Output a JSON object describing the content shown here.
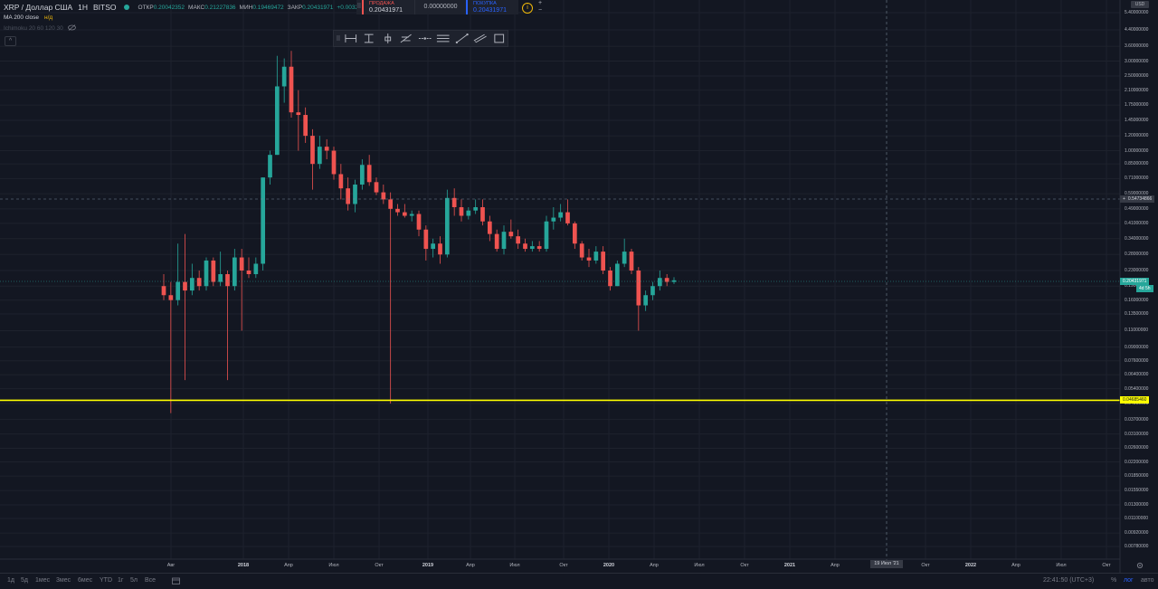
{
  "header": {
    "symbol": "XRP / Доллар США",
    "interval": "1H",
    "exchange": "BITSO",
    "open_label": "ОТКР",
    "open_value": "0.20042352",
    "high_label": "МАКС",
    "high_value": "0.21227836",
    "low_label": "МИН",
    "low_value": "0.19469472",
    "close_label": "ЗАКР",
    "close_value": "0.20431971",
    "change_value": "+0.0032"
  },
  "indicators": [
    {
      "name": "MA 200 close",
      "value": "н/д"
    },
    {
      "name": "Ichimoku 20 60 120 30",
      "value": ""
    }
  ],
  "trade": {
    "sell_label": "ПРОДАЖА",
    "sell_price": "0.20431971",
    "spread": "0.00000000",
    "buy_label": "ПОКУПКА",
    "buy_price": "0.20431971",
    "plus": "+",
    "minus": "−"
  },
  "drawing_tools": [
    "date-price-range-icon",
    "price-range-icon",
    "long-position-icon",
    "fib-retracement-icon",
    "horizontal-ray-icon",
    "parallel-channel-icon",
    "trend-line-icon",
    "pitchfork-icon",
    "rectangle-icon"
  ],
  "price_axis": {
    "currency": "USD",
    "ticks": [
      "5.40000000",
      "4.40000000",
      "3.60000000",
      "3.00000000",
      "2.50000000",
      "2.10000000",
      "1.75000000",
      "1.45000000",
      "1.20000000",
      "1.00000000",
      "0.85000000",
      "0.71000000",
      "0.59000000",
      "0.49000000",
      "0.41000000",
      "0.34000000",
      "0.28000000",
      "0.23000000",
      "0.19000000",
      "0.16000000",
      "0.13500000",
      "0.11000000",
      "0.09000000",
      "0.07600000",
      "0.06400000",
      "0.05400000",
      "0.04500000",
      "0.03700000",
      "0.03100000",
      "0.02600000",
      "0.02200000",
      "0.01850000",
      "0.01550000",
      "0.01300000",
      "0.01100000",
      "0.00920000",
      "0.00780000"
    ],
    "crosshair_price": "0.54734866",
    "current_price": "0.20431971",
    "countdown": "4d 5h",
    "hline_price": "0.04685460"
  },
  "time_axis": {
    "ticks": [
      {
        "label": "Авг",
        "bold": false
      },
      {
        "label": "2018",
        "bold": true
      },
      {
        "label": "Апр",
        "bold": false
      },
      {
        "label": "Июл",
        "bold": false
      },
      {
        "label": "Окт",
        "bold": false
      },
      {
        "label": "2019",
        "bold": true
      },
      {
        "label": "Апр",
        "bold": false
      },
      {
        "label": "Июл",
        "bold": false
      },
      {
        "label": "Окт",
        "bold": false
      },
      {
        "label": "2020",
        "bold": true
      },
      {
        "label": "Апр",
        "bold": false
      },
      {
        "label": "Июл",
        "bold": false
      },
      {
        "label": "Окт",
        "bold": false
      },
      {
        "label": "2021",
        "bold": true
      },
      {
        "label": "Апр",
        "bold": false
      },
      {
        "label": "Окт",
        "bold": false
      },
      {
        "label": "2022",
        "bold": true
      },
      {
        "label": "Апр",
        "bold": false
      },
      {
        "label": "Июл",
        "bold": false
      },
      {
        "label": "Окт",
        "bold": false
      }
    ],
    "crosshair_date": "19 Июл '21"
  },
  "bottom_bar": {
    "ranges": [
      "1д",
      "5д",
      "1мес",
      "3мес",
      "6мес",
      "YTD",
      "1г",
      "5л",
      "Все"
    ],
    "time": "22:41:50 (UTC+3)",
    "percent": "%",
    "log": "лог",
    "auto": "авто"
  },
  "colors": {
    "up": "#26a69a",
    "down": "#ef5350",
    "hline": "#ffff00",
    "bg": "#131722"
  },
  "chart_data": {
    "type": "candlestick",
    "scale": "log",
    "interval": "1W",
    "candles": [
      {
        "date": "2017-07",
        "o": 0.19,
        "h": 0.22,
        "l": 0.16,
        "c": 0.17
      },
      {
        "date": "2017-07",
        "o": 0.17,
        "h": 0.2,
        "l": 0.04,
        "c": 0.16
      },
      {
        "date": "2017-08",
        "o": 0.16,
        "h": 0.32,
        "l": 0.15,
        "c": 0.2
      },
      {
        "date": "2017-08",
        "o": 0.2,
        "h": 0.36,
        "l": 0.06,
        "c": 0.18
      },
      {
        "date": "2017-08",
        "o": 0.18,
        "h": 0.25,
        "l": 0.17,
        "c": 0.21
      },
      {
        "date": "2017-09",
        "o": 0.21,
        "h": 0.23,
        "l": 0.18,
        "c": 0.19
      },
      {
        "date": "2017-09",
        "o": 0.19,
        "h": 0.27,
        "l": 0.18,
        "c": 0.26
      },
      {
        "date": "2017-09",
        "o": 0.26,
        "h": 0.27,
        "l": 0.19,
        "c": 0.2
      },
      {
        "date": "2017-10",
        "o": 0.2,
        "h": 0.29,
        "l": 0.19,
        "c": 0.22
      },
      {
        "date": "2017-10",
        "o": 0.22,
        "h": 0.23,
        "l": 0.06,
        "c": 0.19
      },
      {
        "date": "2017-10",
        "o": 0.19,
        "h": 0.3,
        "l": 0.18,
        "c": 0.27
      },
      {
        "date": "2017-11",
        "o": 0.27,
        "h": 0.3,
        "l": 0.11,
        "c": 0.23
      },
      {
        "date": "2017-11",
        "o": 0.23,
        "h": 0.27,
        "l": 0.21,
        "c": 0.22
      },
      {
        "date": "2017-11",
        "o": 0.22,
        "h": 0.27,
        "l": 0.21,
        "c": 0.25
      },
      {
        "date": "2017-12",
        "o": 0.25,
        "h": 0.72,
        "l": 0.23,
        "c": 0.72
      },
      {
        "date": "2017-12",
        "o": 0.72,
        "h": 1.0,
        "l": 0.66,
        "c": 0.95
      },
      {
        "date": "2017-12",
        "o": 0.95,
        "h": 3.2,
        "l": 0.95,
        "c": 2.2
      },
      {
        "date": "2017-12",
        "o": 2.2,
        "h": 3.1,
        "l": 1.8,
        "c": 2.8
      },
      {
        "date": "2018-01",
        "o": 2.8,
        "h": 3.4,
        "l": 1.5,
        "c": 1.6
      },
      {
        "date": "2018-01",
        "o": 1.6,
        "h": 2.1,
        "l": 1.0,
        "c": 1.55
      },
      {
        "date": "2018-01",
        "o": 1.55,
        "h": 1.7,
        "l": 1.1,
        "c": 1.2
      },
      {
        "date": "2018-02",
        "o": 1.2,
        "h": 1.3,
        "l": 0.62,
        "c": 0.85
      },
      {
        "date": "2018-02",
        "o": 0.85,
        "h": 1.2,
        "l": 0.8,
        "c": 1.05
      },
      {
        "date": "2018-02",
        "o": 1.05,
        "h": 1.15,
        "l": 0.9,
        "c": 1.0
      },
      {
        "date": "2018-03",
        "o": 1.0,
        "h": 1.05,
        "l": 0.7,
        "c": 0.75
      },
      {
        "date": "2018-03",
        "o": 0.75,
        "h": 0.85,
        "l": 0.55,
        "c": 0.63
      },
      {
        "date": "2018-03",
        "o": 0.63,
        "h": 0.72,
        "l": 0.48,
        "c": 0.52
      },
      {
        "date": "2018-04",
        "o": 0.52,
        "h": 0.7,
        "l": 0.47,
        "c": 0.66
      },
      {
        "date": "2018-04",
        "o": 0.66,
        "h": 0.9,
        "l": 0.62,
        "c": 0.84
      },
      {
        "date": "2018-05",
        "o": 0.84,
        "h": 0.95,
        "l": 0.65,
        "c": 0.68
      },
      {
        "date": "2018-05",
        "o": 0.68,
        "h": 0.72,
        "l": 0.58,
        "c": 0.6
      },
      {
        "date": "2018-05",
        "o": 0.6,
        "h": 0.66,
        "l": 0.52,
        "c": 0.55
      },
      {
        "date": "2018-06",
        "o": 0.55,
        "h": 0.6,
        "l": 0.045,
        "c": 0.49
      },
      {
        "date": "2018-06",
        "o": 0.49,
        "h": 0.52,
        "l": 0.45,
        "c": 0.47
      },
      {
        "date": "2018-07",
        "o": 0.47,
        "h": 0.52,
        "l": 0.44,
        "c": 0.45
      },
      {
        "date": "2018-07",
        "o": 0.45,
        "h": 0.48,
        "l": 0.42,
        "c": 0.46
      },
      {
        "date": "2018-08",
        "o": 0.46,
        "h": 0.48,
        "l": 0.35,
        "c": 0.38
      },
      {
        "date": "2018-08",
        "o": 0.38,
        "h": 0.4,
        "l": 0.26,
        "c": 0.3
      },
      {
        "date": "2018-08",
        "o": 0.3,
        "h": 0.34,
        "l": 0.27,
        "c": 0.32
      },
      {
        "date": "2018-09",
        "o": 0.32,
        "h": 0.35,
        "l": 0.25,
        "c": 0.28
      },
      {
        "date": "2018-09",
        "o": 0.28,
        "h": 0.62,
        "l": 0.27,
        "c": 0.56
      },
      {
        "date": "2018-09",
        "o": 0.56,
        "h": 0.63,
        "l": 0.45,
        "c": 0.5
      },
      {
        "date": "2018-10",
        "o": 0.5,
        "h": 0.55,
        "l": 0.42,
        "c": 0.45
      },
      {
        "date": "2018-10",
        "o": 0.45,
        "h": 0.5,
        "l": 0.43,
        "c": 0.48
      },
      {
        "date": "2018-11",
        "o": 0.48,
        "h": 0.55,
        "l": 0.46,
        "c": 0.5
      },
      {
        "date": "2018-11",
        "o": 0.5,
        "h": 0.55,
        "l": 0.4,
        "c": 0.42
      },
      {
        "date": "2018-11",
        "o": 0.42,
        "h": 0.45,
        "l": 0.33,
        "c": 0.36
      },
      {
        "date": "2018-12",
        "o": 0.36,
        "h": 0.38,
        "l": 0.29,
        "c": 0.3
      },
      {
        "date": "2018-12",
        "o": 0.3,
        "h": 0.4,
        "l": 0.28,
        "c": 0.37
      },
      {
        "date": "2018-12",
        "o": 0.37,
        "h": 0.43,
        "l": 0.34,
        "c": 0.35
      },
      {
        "date": "2019-01",
        "o": 0.35,
        "h": 0.38,
        "l": 0.3,
        "c": 0.32
      },
      {
        "date": "2019-02",
        "o": 0.32,
        "h": 0.34,
        "l": 0.29,
        "c": 0.3
      },
      {
        "date": "2019-03",
        "o": 0.3,
        "h": 0.33,
        "l": 0.29,
        "c": 0.31
      },
      {
        "date": "2019-04",
        "o": 0.31,
        "h": 0.33,
        "l": 0.29,
        "c": 0.3
      },
      {
        "date": "2019-05",
        "o": 0.3,
        "h": 0.45,
        "l": 0.29,
        "c": 0.42
      },
      {
        "date": "2019-06",
        "o": 0.42,
        "h": 0.5,
        "l": 0.38,
        "c": 0.44
      },
      {
        "date": "2019-06",
        "o": 0.44,
        "h": 0.52,
        "l": 0.42,
        "c": 0.47
      },
      {
        "date": "2019-07",
        "o": 0.47,
        "h": 0.55,
        "l": 0.4,
        "c": 0.41
      },
      {
        "date": "2019-07",
        "o": 0.41,
        "h": 0.42,
        "l": 0.3,
        "c": 0.32
      },
      {
        "date": "2019-08",
        "o": 0.32,
        "h": 0.33,
        "l": 0.26,
        "c": 0.27
      },
      {
        "date": "2019-09",
        "o": 0.27,
        "h": 0.3,
        "l": 0.24,
        "c": 0.26
      },
      {
        "date": "2019-10",
        "o": 0.26,
        "h": 0.31,
        "l": 0.25,
        "c": 0.29
      },
      {
        "date": "2019-11",
        "o": 0.29,
        "h": 0.31,
        "l": 0.22,
        "c": 0.23
      },
      {
        "date": "2019-12",
        "o": 0.23,
        "h": 0.24,
        "l": 0.18,
        "c": 0.19
      },
      {
        "date": "2020-01",
        "o": 0.19,
        "h": 0.26,
        "l": 0.19,
        "c": 0.25
      },
      {
        "date": "2020-02",
        "o": 0.25,
        "h": 0.34,
        "l": 0.24,
        "c": 0.29
      },
      {
        "date": "2020-02",
        "o": 0.29,
        "h": 0.3,
        "l": 0.22,
        "c": 0.23
      },
      {
        "date": "2020-03",
        "o": 0.23,
        "h": 0.24,
        "l": 0.11,
        "c": 0.15
      },
      {
        "date": "2020-03",
        "o": 0.15,
        "h": 0.18,
        "l": 0.14,
        "c": 0.17
      },
      {
        "date": "2020-04",
        "o": 0.17,
        "h": 0.2,
        "l": 0.16,
        "c": 0.19
      },
      {
        "date": "2020-04",
        "o": 0.19,
        "h": 0.23,
        "l": 0.18,
        "c": 0.21
      },
      {
        "date": "2020-05",
        "o": 0.21,
        "h": 0.22,
        "l": 0.19,
        "c": 0.2
      },
      {
        "date": "2020-05",
        "o": 0.2,
        "h": 0.212,
        "l": 0.195,
        "c": 0.204
      }
    ],
    "horizontal_line": 0.0468546,
    "crosshair_price": 0.54734866,
    "last_price": 0.20431971
  }
}
